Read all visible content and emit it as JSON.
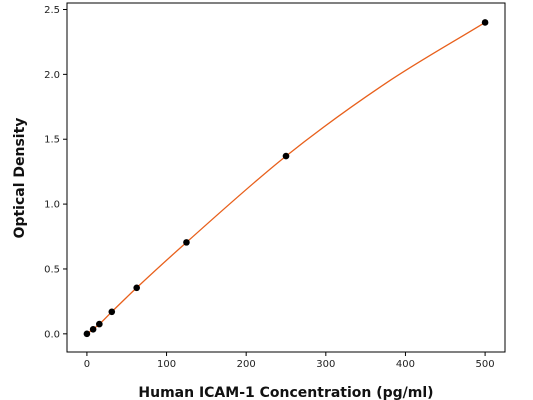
{
  "chart_data": {
    "type": "scatter",
    "xlabel": "Human ICAM-1 Concentration (pg/ml)",
    "ylabel": "Optical Density",
    "xlim": [
      -25,
      525
    ],
    "ylim": [
      -0.14,
      2.55
    ],
    "x_ticks": [
      0,
      100,
      200,
      300,
      400,
      500
    ],
    "y_ticks": [
      0.0,
      0.5,
      1.0,
      1.5,
      2.0,
      2.5
    ],
    "x_tick_labels": [
      "0",
      "100",
      "200",
      "300",
      "400",
      "500"
    ],
    "y_tick_labels": [
      "0.0",
      "0.5",
      "1.0",
      "1.5",
      "2.0",
      "2.5"
    ],
    "grid": false,
    "points": {
      "x": [
        0,
        7.8,
        15.6,
        31.25,
        62.5,
        125,
        250,
        500
      ],
      "y": [
        0.0,
        0.035,
        0.075,
        0.17,
        0.355,
        0.705,
        1.37,
        2.4
      ]
    },
    "fit_curve": {
      "x": [
        0,
        15.6,
        31.25,
        62.5,
        125,
        250,
        375,
        500
      ],
      "y": [
        0.0,
        0.075,
        0.17,
        0.355,
        0.705,
        1.37,
        1.93,
        2.4
      ]
    },
    "colors": {
      "points": "#000000",
      "fit_curve": "#e8601c",
      "axes": "#000000"
    }
  }
}
